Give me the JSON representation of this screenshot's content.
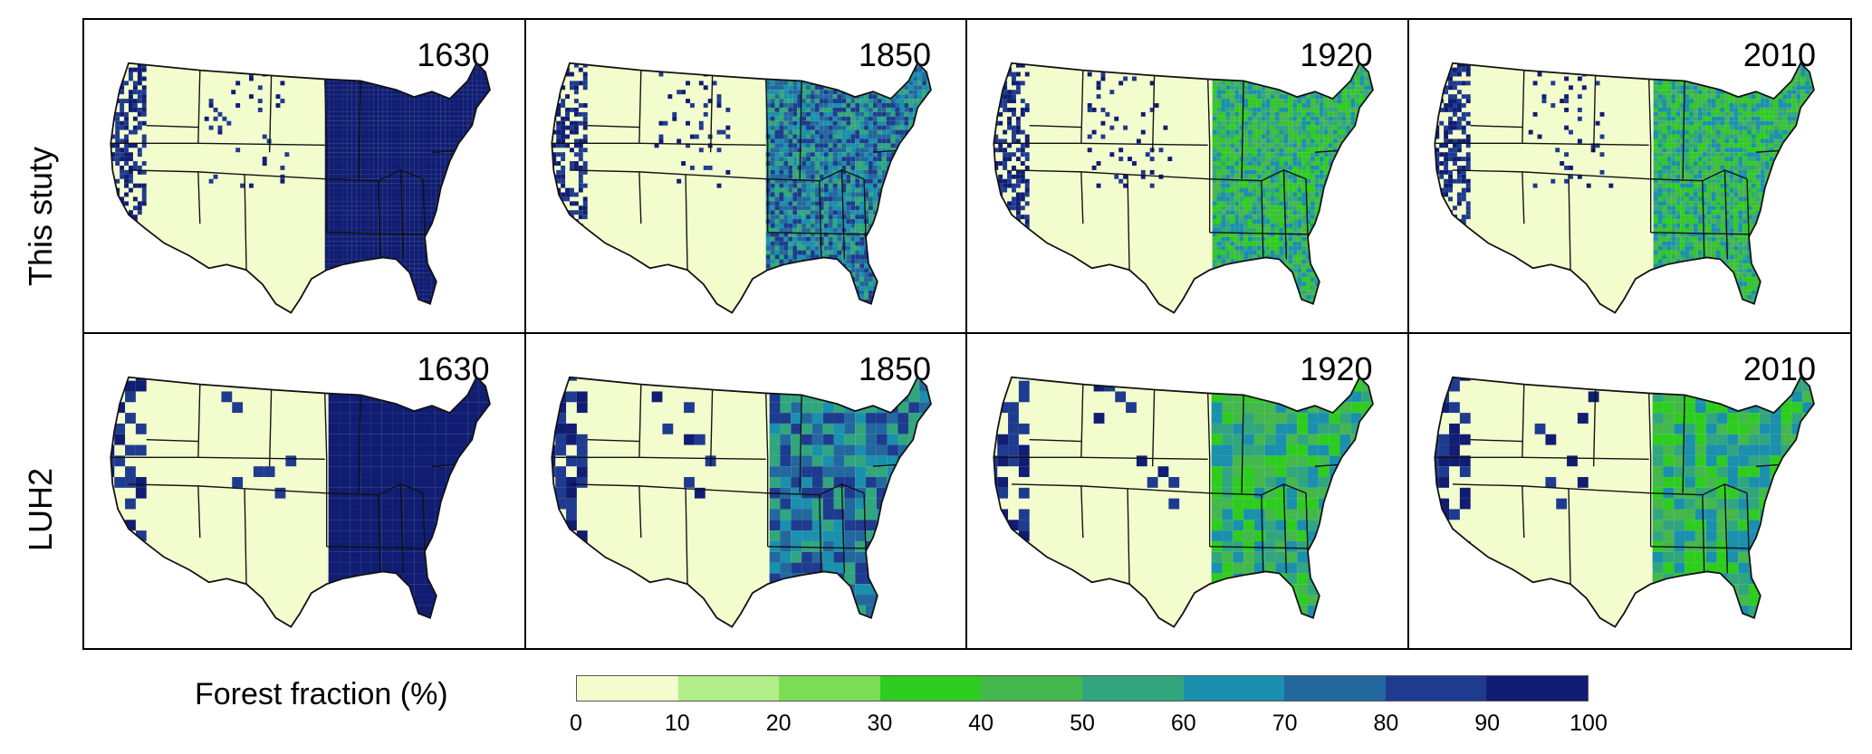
{
  "rows": [
    {
      "label": "This stuty"
    },
    {
      "label": "LUH2"
    }
  ],
  "years": [
    "1630",
    "1850",
    "1920",
    "2010"
  ],
  "legend": {
    "title": "Forest  fraction (%)",
    "ticks": [
      "0",
      "10",
      "20",
      "30",
      "40",
      "50",
      "60",
      "70",
      "80",
      "90",
      "100"
    ],
    "colors": [
      "#f3fccd",
      "#b2ee88",
      "#7ddd54",
      "#2fcc20",
      "#44b74d",
      "#31a67e",
      "#1b8fae",
      "#23679f",
      "#1e3b8f",
      "#101d73"
    ]
  },
  "colors": {
    "non_forest": "#f3fccd",
    "dense_forest": "#101d73",
    "state_lines": "#111111"
  }
}
